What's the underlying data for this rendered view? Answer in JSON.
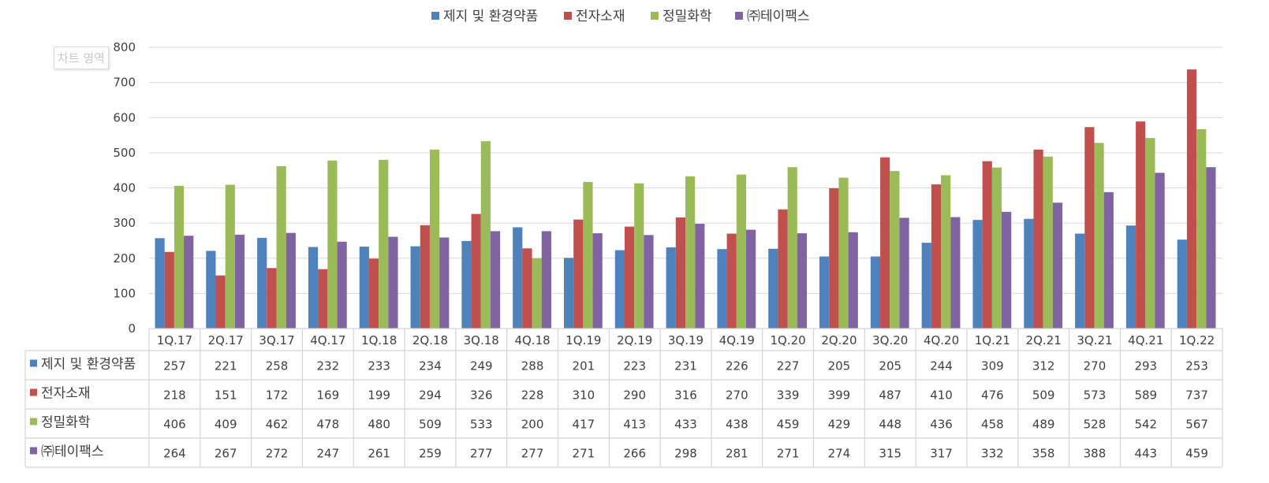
{
  "tooltip": "차트 영역",
  "chart_data": {
    "type": "bar",
    "categories": [
      "1Q.17",
      "2Q.17",
      "3Q.17",
      "4Q.17",
      "1Q.18",
      "2Q.18",
      "3Q.18",
      "4Q.18",
      "1Q.19",
      "2Q.19",
      "3Q.19",
      "4Q.19",
      "1Q.20",
      "2Q.20",
      "3Q.20",
      "4Q.20",
      "1Q.21",
      "2Q.21",
      "3Q.21",
      "4Q.21",
      "1Q.22"
    ],
    "ylim": [
      0,
      800
    ],
    "yticks": [
      0,
      100,
      200,
      300,
      400,
      500,
      600,
      700,
      800
    ],
    "grid": true,
    "legend_position": "top",
    "data_table": true,
    "series": [
      {
        "name": "제지 및 환경약품",
        "color": "#4f81bd",
        "values": [
          257,
          221,
          258,
          232,
          233,
          234,
          249,
          288,
          201,
          223,
          231,
          226,
          227,
          205,
          205,
          244,
          309,
          312,
          270,
          293,
          253
        ]
      },
      {
        "name": "전자소재",
        "color": "#c0504d",
        "values": [
          218,
          151,
          172,
          169,
          199,
          294,
          326,
          228,
          310,
          290,
          316,
          270,
          339,
          399,
          487,
          410,
          476,
          509,
          573,
          589,
          737
        ]
      },
      {
        "name": "정밀화학",
        "color": "#9bbb59",
        "values": [
          406,
          409,
          462,
          478,
          480,
          509,
          533,
          200,
          417,
          413,
          433,
          438,
          459,
          429,
          448,
          436,
          458,
          489,
          528,
          542,
          567
        ]
      },
      {
        "name": "㈜테이팩스",
        "color": "#8064a2",
        "values": [
          264,
          267,
          272,
          247,
          261,
          259,
          277,
          277,
          271,
          266,
          298,
          281,
          271,
          274,
          315,
          317,
          332,
          358,
          388,
          443,
          459
        ]
      }
    ]
  }
}
